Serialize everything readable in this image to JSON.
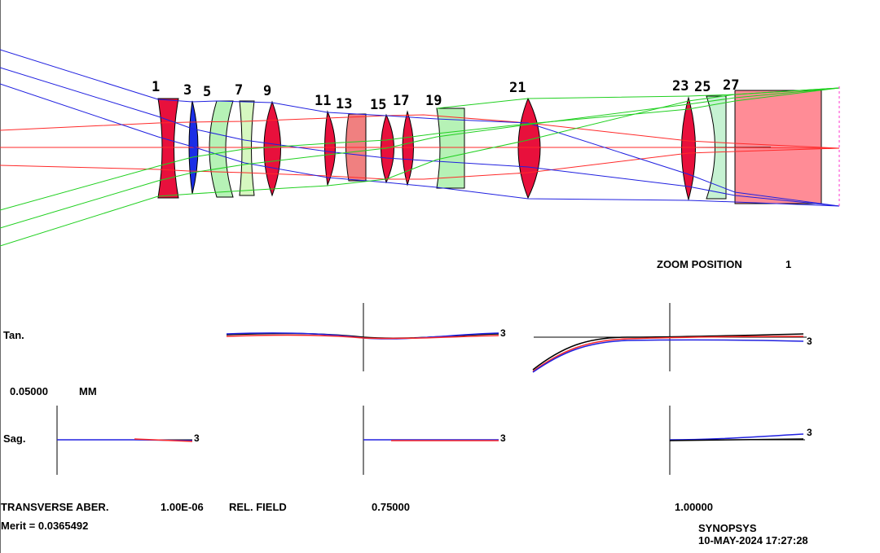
{
  "surface_numbers": [
    "1",
    "3",
    "5",
    "7",
    "9",
    "11",
    "13",
    "15",
    "17",
    "19",
    "21",
    "23",
    "25",
    "27"
  ],
  "zoom": {
    "label": "ZOOM POSITION",
    "value": "1"
  },
  "aberration": {
    "tan_label": "Tan.",
    "sag_label": "Sag.",
    "scale_value": "0.05000",
    "scale_unit": "MM",
    "curve_label": "3",
    "bottom": {
      "title": "TRANSVERSE ABER.",
      "wavelength": "1.00E-06",
      "rel_field_label": "REL. FIELD",
      "field_2": "0.75000",
      "field_3": "1.00000"
    }
  },
  "merit": "Merit = 0.0365492",
  "footer": {
    "program": "SYNOPSYS",
    "timestamp": "10-MAY-2024 17:27:28"
  },
  "colors": {
    "red_ray": "#ff2a2a",
    "blue_ray": "#2020e0",
    "green_ray": "#20d020",
    "lens_crimson": "#e8103c",
    "lens_blue": "#1a2ee6",
    "lens_light_green": "#b6f2b6",
    "lens_pale_green": "#d6f7c0",
    "lens_salmon": "#f08080",
    "prism_pink": "#ff8c96",
    "lens_mint": "#c6f2d2"
  }
}
